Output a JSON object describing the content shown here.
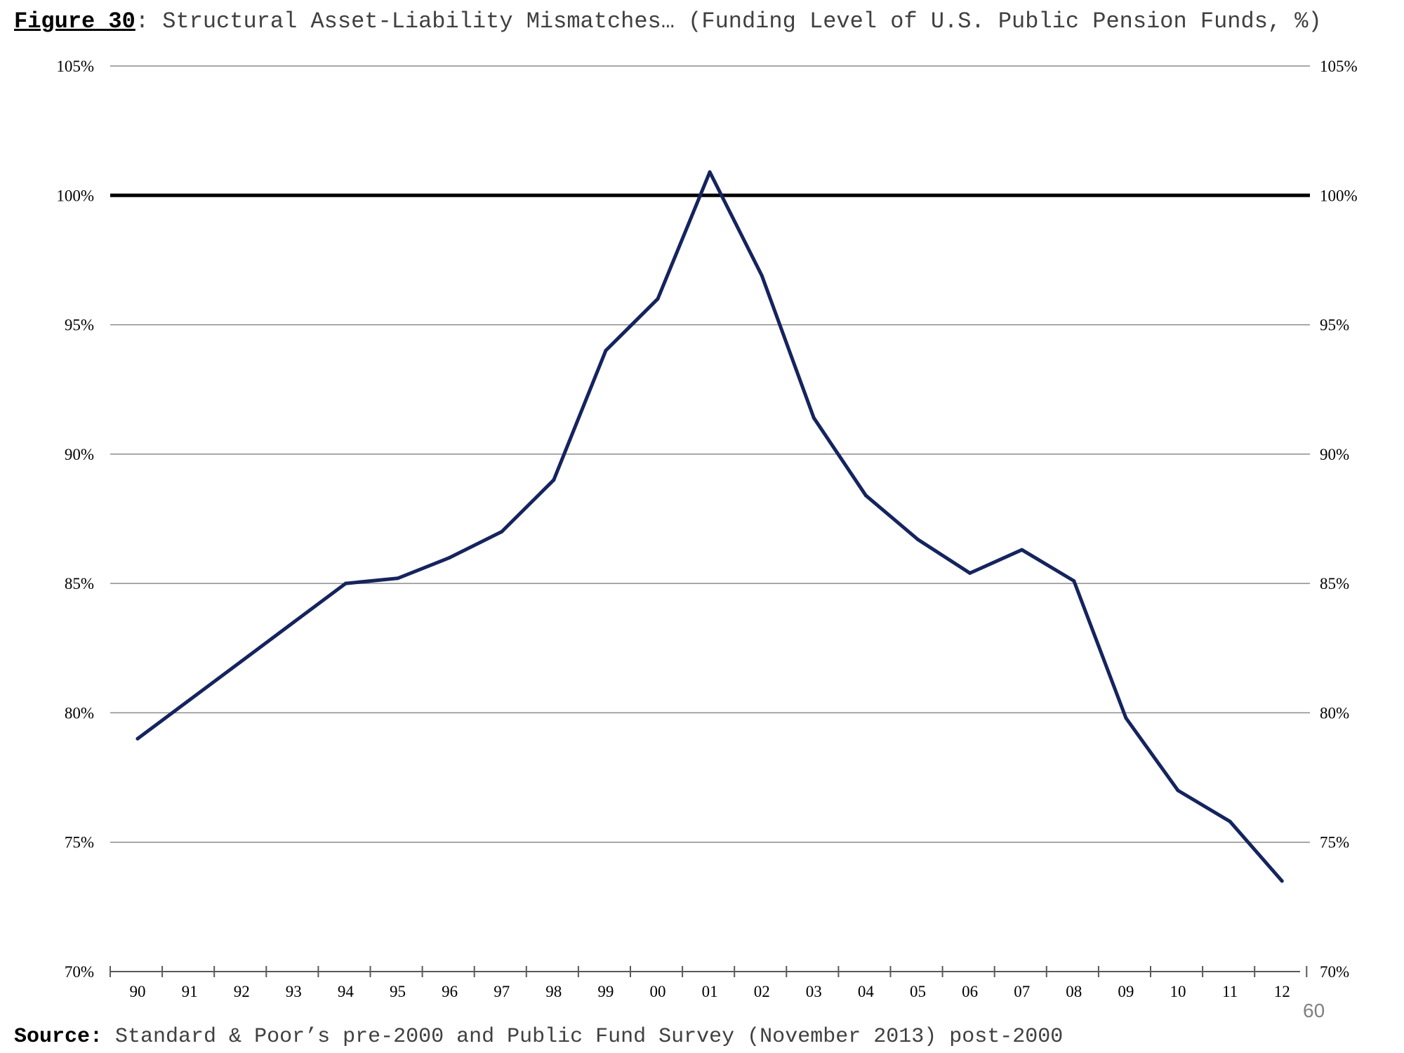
{
  "title": {
    "label": "Figure 30",
    "text": ": Structural Asset-Liability Mismatches… (Funding Level of U.S. Public Pension Funds, %)"
  },
  "source": {
    "label": "Source:",
    "text": " Standard & Poor’s pre-2000 and Public Fund Survey (November 2013) post-2000"
  },
  "page_number": "60",
  "chart_data": {
    "type": "line",
    "categories": [
      "90",
      "91",
      "92",
      "93",
      "94",
      "95",
      "96",
      "97",
      "98",
      "99",
      "00",
      "01",
      "02",
      "03",
      "04",
      "05",
      "06",
      "07",
      "08",
      "09",
      "10",
      "11",
      "12"
    ],
    "series": [
      {
        "values": [
          79.0,
          80.5,
          82.0,
          83.5,
          85.0,
          85.2,
          86.0,
          87.0,
          89.0,
          94.0,
          96.0,
          100.9,
          96.9,
          91.4,
          88.4,
          86.7,
          85.4,
          86.3,
          85.1,
          79.8,
          77.0,
          75.8,
          73.5
        ],
        "color": "#15245e"
      }
    ],
    "reference_line": {
      "value": 100,
      "color": "#000000"
    },
    "ylim": [
      70,
      105
    ],
    "y_ticks": [
      70,
      75,
      80,
      85,
      90,
      95,
      100,
      105
    ],
    "y_tick_labels": [
      "70%",
      "75%",
      "80%",
      "85%",
      "90%",
      "95%",
      "100%",
      "105%"
    ],
    "grid": true,
    "right_axis_labels": true,
    "xlabel": "",
    "ylabel": ""
  }
}
